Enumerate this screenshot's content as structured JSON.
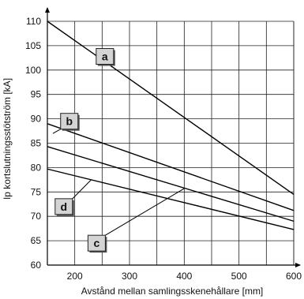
{
  "chart_data": {
    "type": "line",
    "xlabel": "Avstånd mellan samlingsskenehållare [mm]",
    "ylabel": "Ip kortslutningsstötström [kA]",
    "xlim": [
      150,
      600
    ],
    "ylim": [
      60,
      110
    ],
    "x_ticks": [
      200,
      300,
      400,
      500,
      600
    ],
    "y_ticks": [
      60,
      65,
      70,
      75,
      80,
      85,
      90,
      95,
      100,
      105,
      110
    ],
    "grid": true,
    "series": [
      {
        "name": "a",
        "x": [
          150,
          600
        ],
        "y": [
          110,
          74.5
        ]
      },
      {
        "name": "b",
        "x": [
          150,
          600
        ],
        "y": [
          89,
          71.2
        ]
      },
      {
        "name": "c",
        "x": [
          150,
          600
        ],
        "y": [
          84.3,
          69
        ]
      },
      {
        "name": "d",
        "x": [
          150,
          600
        ],
        "y": [
          79.7,
          67.3
        ]
      }
    ],
    "annotations": [
      {
        "label": "a",
        "badge": [
          255,
          102.8
        ],
        "target": [
          270,
          101.2
        ]
      },
      {
        "label": "b",
        "badge": [
          190,
          89.5
        ],
        "target": [
          160,
          87
        ]
      },
      {
        "label": "d",
        "badge": [
          180,
          72
        ],
        "target": [
          230,
          77.5
        ]
      },
      {
        "label": "c",
        "badge": [
          240,
          64.5
        ],
        "target": [
          400,
          75.7
        ]
      }
    ]
  }
}
